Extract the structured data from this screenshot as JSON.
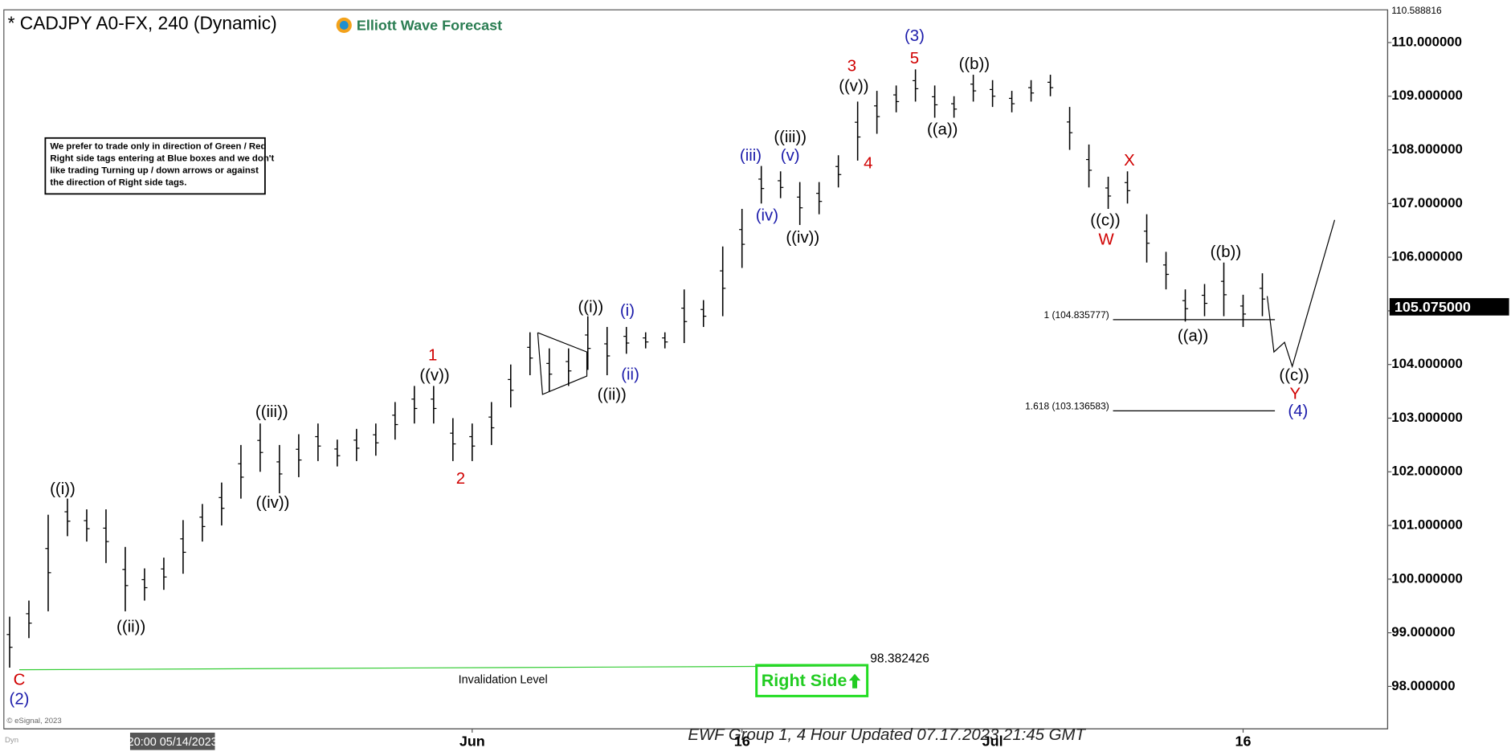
{
  "chart_data": {
    "type": "ohlc",
    "title": "* CADJPY A0-FX, 240 (Dynamic)",
    "brand": "Elliott Wave Forecast",
    "footer": "EWF Group 1, 4 Hour Updated 07.17.2023 21:45 GMT",
    "copyright": "© eSignal, 2023",
    "corner_label": "Dyn",
    "cursor_label": "20:00 05/14/2023",
    "note": [
      "We prefer to trade only in direction of Green / Red",
      "Right side tags entering at Blue boxes and we don't",
      "like trading Turning up / down arrows or against",
      "the direction of Right side tags."
    ],
    "categories": [
      null,
      null,
      null,
      null,
      null,
      null,
      null,
      null,
      null,
      null,
      null,
      null,
      null,
      null,
      null,
      null,
      null,
      null,
      null,
      null,
      null,
      null,
      null,
      null,
      "Jun",
      null,
      null,
      null,
      null,
      null,
      null,
      null,
      null,
      null,
      null,
      null,
      null,
      null,
      "16",
      null,
      null,
      null,
      null,
      null,
      null,
      null,
      null,
      null,
      null,
      null,
      null,
      "Jul",
      null,
      null,
      null,
      null,
      null,
      null,
      null,
      null,
      null,
      null,
      null,
      null,
      "16",
      null
    ],
    "high": [
      99.3,
      99.6,
      101.2,
      101.5,
      101.3,
      101.3,
      100.6,
      100.2,
      100.4,
      101.1,
      101.4,
      101.8,
      102.5,
      102.9,
      102.5,
      102.7,
      102.9,
      102.6,
      102.8,
      102.9,
      103.3,
      103.6,
      103.6,
      103.0,
      102.9,
      103.3,
      104.0,
      104.6,
      104.3,
      104.3,
      104.9,
      104.7,
      104.7,
      104.6,
      104.6,
      105.4,
      105.2,
      106.2,
      106.9,
      107.7,
      107.6,
      107.4,
      107.4,
      107.9,
      108.9,
      109.1,
      109.2,
      109.5,
      109.2,
      109.0,
      109.4,
      109.3,
      109.1,
      109.3,
      109.4,
      108.8,
      108.1,
      107.5,
      107.6,
      106.8,
      106.1,
      105.4,
      105.5,
      105.9,
      105.3,
      105.7
    ],
    "low": [
      98.35,
      98.9,
      99.4,
      100.8,
      100.7,
      100.3,
      99.4,
      99.6,
      99.8,
      100.1,
      100.7,
      101.0,
      101.5,
      102.0,
      101.6,
      101.9,
      102.2,
      102.1,
      102.2,
      102.3,
      102.6,
      102.9,
      102.9,
      102.2,
      102.2,
      102.5,
      103.2,
      103.8,
      103.5,
      103.6,
      103.9,
      103.8,
      104.2,
      104.3,
      104.3,
      104.4,
      104.7,
      104.9,
      105.8,
      107.0,
      107.1,
      106.6,
      106.8,
      107.3,
      107.8,
      108.3,
      108.7,
      108.9,
      108.6,
      108.6,
      108.9,
      108.8,
      108.7,
      108.9,
      109.0,
      108.0,
      107.3,
      106.9,
      107.0,
      105.9,
      105.4,
      104.8,
      104.9,
      104.9,
      104.7,
      104.9
    ],
    "color": "#000000",
    "ylim": [
      97.21,
      110.61
    ],
    "yticks": [
      {
        "value": 98,
        "label": "98.000000"
      },
      {
        "value": 99,
        "label": "99.000000"
      },
      {
        "value": 100,
        "label": "100.000000"
      },
      {
        "value": 101,
        "label": "101.000000"
      },
      {
        "value": 102,
        "label": "102.000000"
      },
      {
        "value": 103,
        "label": "103.000000"
      },
      {
        "value": 104,
        "label": "104.000000"
      },
      {
        "value": 105,
        "label": "105.000000"
      },
      {
        "value": 106,
        "label": "106.000000"
      },
      {
        "value": 107,
        "label": "107.000000"
      },
      {
        "value": 108,
        "label": "108.000000"
      },
      {
        "value": 109,
        "label": "109.000000"
      },
      {
        "value": 110,
        "label": "110.000000"
      }
    ],
    "axis_top_value": 110.588816,
    "last_price": {
      "value": 105.075,
      "label": "105.075000"
    },
    "invalidation": {
      "value": 98.382426,
      "label": "Invalidation Level",
      "color": "#33cc33"
    },
    "right_side": "Right Side",
    "fib_levels": [
      {
        "value": 104.835777,
        "label": "1 (104.835777)"
      },
      {
        "value": 103.136583,
        "label": "1.618 (103.136583)"
      }
    ],
    "annotations": [
      {
        "text": "C",
        "color": "#d00000"
      },
      {
        "text": "(2)",
        "color": "#1a1aaa"
      },
      {
        "text": "((i))",
        "color": "#000000"
      },
      {
        "text": "((ii))",
        "color": "#000000"
      },
      {
        "text": "((iii))",
        "color": "#000000"
      },
      {
        "text": "((iv))",
        "color": "#000000"
      },
      {
        "text": "1",
        "color": "#d00000"
      },
      {
        "text": "((v))",
        "color": "#000000"
      },
      {
        "text": "2",
        "color": "#d00000"
      },
      {
        "text": "((i))",
        "color": "#000000"
      },
      {
        "text": "(i)",
        "color": "#1a1aaa"
      },
      {
        "text": "((ii))",
        "color": "#000000"
      },
      {
        "text": "(ii)",
        "color": "#1a1aaa"
      },
      {
        "text": "(iii)",
        "color": "#1a1aaa"
      },
      {
        "text": "(iv)",
        "color": "#1a1aaa"
      },
      {
        "text": "(v)",
        "color": "#1a1aaa"
      },
      {
        "text": "((iii))",
        "color": "#000000"
      },
      {
        "text": "((iv))",
        "color": "#000000"
      },
      {
        "text": "3",
        "color": "#d00000"
      },
      {
        "text": "((v))",
        "color": "#000000"
      },
      {
        "text": "4",
        "color": "#d00000"
      },
      {
        "text": "(3)",
        "color": "#1a1aaa"
      },
      {
        "text": "5",
        "color": "#d00000"
      },
      {
        "text": "((a))",
        "color": "#000000"
      },
      {
        "text": "((b))",
        "color": "#000000"
      },
      {
        "text": "((c))",
        "color": "#000000"
      },
      {
        "text": "W",
        "color": "#d00000"
      },
      {
        "text": "X",
        "color": "#d00000"
      },
      {
        "text": "((b))",
        "color": "#000000"
      },
      {
        "text": "((a))",
        "color": "#000000"
      },
      {
        "text": "((c))",
        "color": "#000000"
      },
      {
        "text": "Y",
        "color": "#d00000"
      },
      {
        "text": "(4)",
        "color": "#1a1aaa"
      }
    ]
  }
}
